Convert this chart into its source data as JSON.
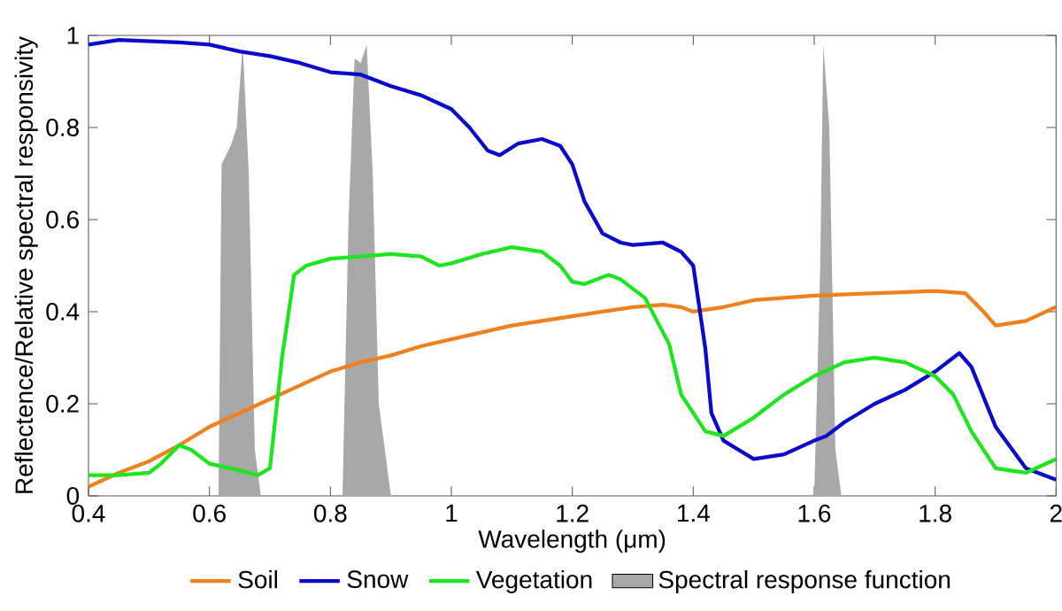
{
  "chart_data": {
    "type": "line",
    "xlabel": "Wavelength (μm)",
    "ylabel": "Reflectence/Relative spectral responsivity",
    "xlim": [
      0.4,
      2
    ],
    "ylim": [
      0,
      1
    ],
    "xticks": [
      0.4,
      0.6,
      0.8,
      1,
      1.2,
      1.4,
      1.6,
      1.8,
      2
    ],
    "yticks": [
      0,
      0.2,
      0.4,
      0.6,
      0.8,
      1
    ],
    "grid": false,
    "legend": "bottom",
    "marker": "none",
    "line_style": "solid",
    "series": [
      {
        "name": "Soil",
        "color": "#f07f1e",
        "x": [
          0.4,
          0.45,
          0.5,
          0.55,
          0.6,
          0.65,
          0.7,
          0.75,
          0.8,
          0.85,
          0.9,
          0.95,
          1.0,
          1.05,
          1.1,
          1.15,
          1.2,
          1.25,
          1.3,
          1.35,
          1.38,
          1.4,
          1.45,
          1.5,
          1.6,
          1.7,
          1.8,
          1.85,
          1.88,
          1.9,
          1.95,
          2.0
        ],
        "values": [
          0.02,
          0.05,
          0.075,
          0.11,
          0.15,
          0.18,
          0.21,
          0.24,
          0.27,
          0.29,
          0.305,
          0.325,
          0.34,
          0.355,
          0.37,
          0.38,
          0.39,
          0.4,
          0.41,
          0.415,
          0.41,
          0.4,
          0.41,
          0.425,
          0.435,
          0.44,
          0.445,
          0.44,
          0.4,
          0.37,
          0.38,
          0.41
        ]
      },
      {
        "name": "Snow",
        "color": "#0a0acc",
        "x": [
          0.4,
          0.45,
          0.55,
          0.6,
          0.65,
          0.7,
          0.75,
          0.8,
          0.85,
          0.9,
          0.95,
          1.0,
          1.03,
          1.06,
          1.08,
          1.11,
          1.15,
          1.18,
          1.2,
          1.22,
          1.25,
          1.28,
          1.3,
          1.35,
          1.38,
          1.4,
          1.42,
          1.43,
          1.45,
          1.5,
          1.55,
          1.6,
          1.62,
          1.65,
          1.7,
          1.75,
          1.8,
          1.84,
          1.86,
          1.9,
          1.95,
          2.0
        ],
        "values": [
          0.98,
          0.99,
          0.985,
          0.98,
          0.965,
          0.955,
          0.94,
          0.92,
          0.915,
          0.89,
          0.87,
          0.84,
          0.8,
          0.75,
          0.74,
          0.765,
          0.775,
          0.76,
          0.72,
          0.64,
          0.57,
          0.55,
          0.545,
          0.55,
          0.53,
          0.5,
          0.32,
          0.18,
          0.12,
          0.08,
          0.09,
          0.12,
          0.13,
          0.16,
          0.2,
          0.23,
          0.27,
          0.31,
          0.28,
          0.15,
          0.06,
          0.035
        ]
      },
      {
        "name": "Vegetation",
        "color": "#1ee61e",
        "x": [
          0.4,
          0.45,
          0.5,
          0.52,
          0.55,
          0.57,
          0.6,
          0.65,
          0.68,
          0.7,
          0.72,
          0.74,
          0.76,
          0.8,
          0.85,
          0.9,
          0.95,
          0.98,
          1.0,
          1.05,
          1.1,
          1.15,
          1.18,
          1.2,
          1.22,
          1.26,
          1.28,
          1.32,
          1.36,
          1.38,
          1.42,
          1.45,
          1.5,
          1.55,
          1.6,
          1.65,
          1.7,
          1.75,
          1.8,
          1.83,
          1.86,
          1.9,
          1.95,
          2.0
        ],
        "values": [
          0.045,
          0.045,
          0.05,
          0.07,
          0.11,
          0.1,
          0.07,
          0.055,
          0.045,
          0.06,
          0.3,
          0.48,
          0.5,
          0.515,
          0.52,
          0.525,
          0.52,
          0.5,
          0.505,
          0.525,
          0.54,
          0.53,
          0.5,
          0.465,
          0.46,
          0.48,
          0.47,
          0.43,
          0.33,
          0.22,
          0.14,
          0.13,
          0.17,
          0.22,
          0.26,
          0.29,
          0.3,
          0.29,
          0.26,
          0.22,
          0.14,
          0.06,
          0.05,
          0.08
        ]
      },
      {
        "name": "Spectral response function",
        "type": "area",
        "color": "#a8a8a8",
        "x": [
          0.4,
          0.615,
          0.62,
          0.635,
          0.645,
          0.655,
          0.665,
          0.675,
          0.685,
          0.82,
          0.83,
          0.84,
          0.85,
          0.86,
          0.87,
          0.88,
          0.9,
          1.6,
          1.61,
          1.615,
          1.625,
          1.635,
          1.645,
          2.0
        ],
        "values": [
          0,
          0,
          0.72,
          0.76,
          0.8,
          0.98,
          0.7,
          0.1,
          0,
          0,
          0.6,
          0.95,
          0.94,
          0.98,
          0.7,
          0.2,
          0,
          0,
          0.5,
          0.98,
          0.8,
          0.1,
          0,
          0
        ]
      }
    ]
  }
}
